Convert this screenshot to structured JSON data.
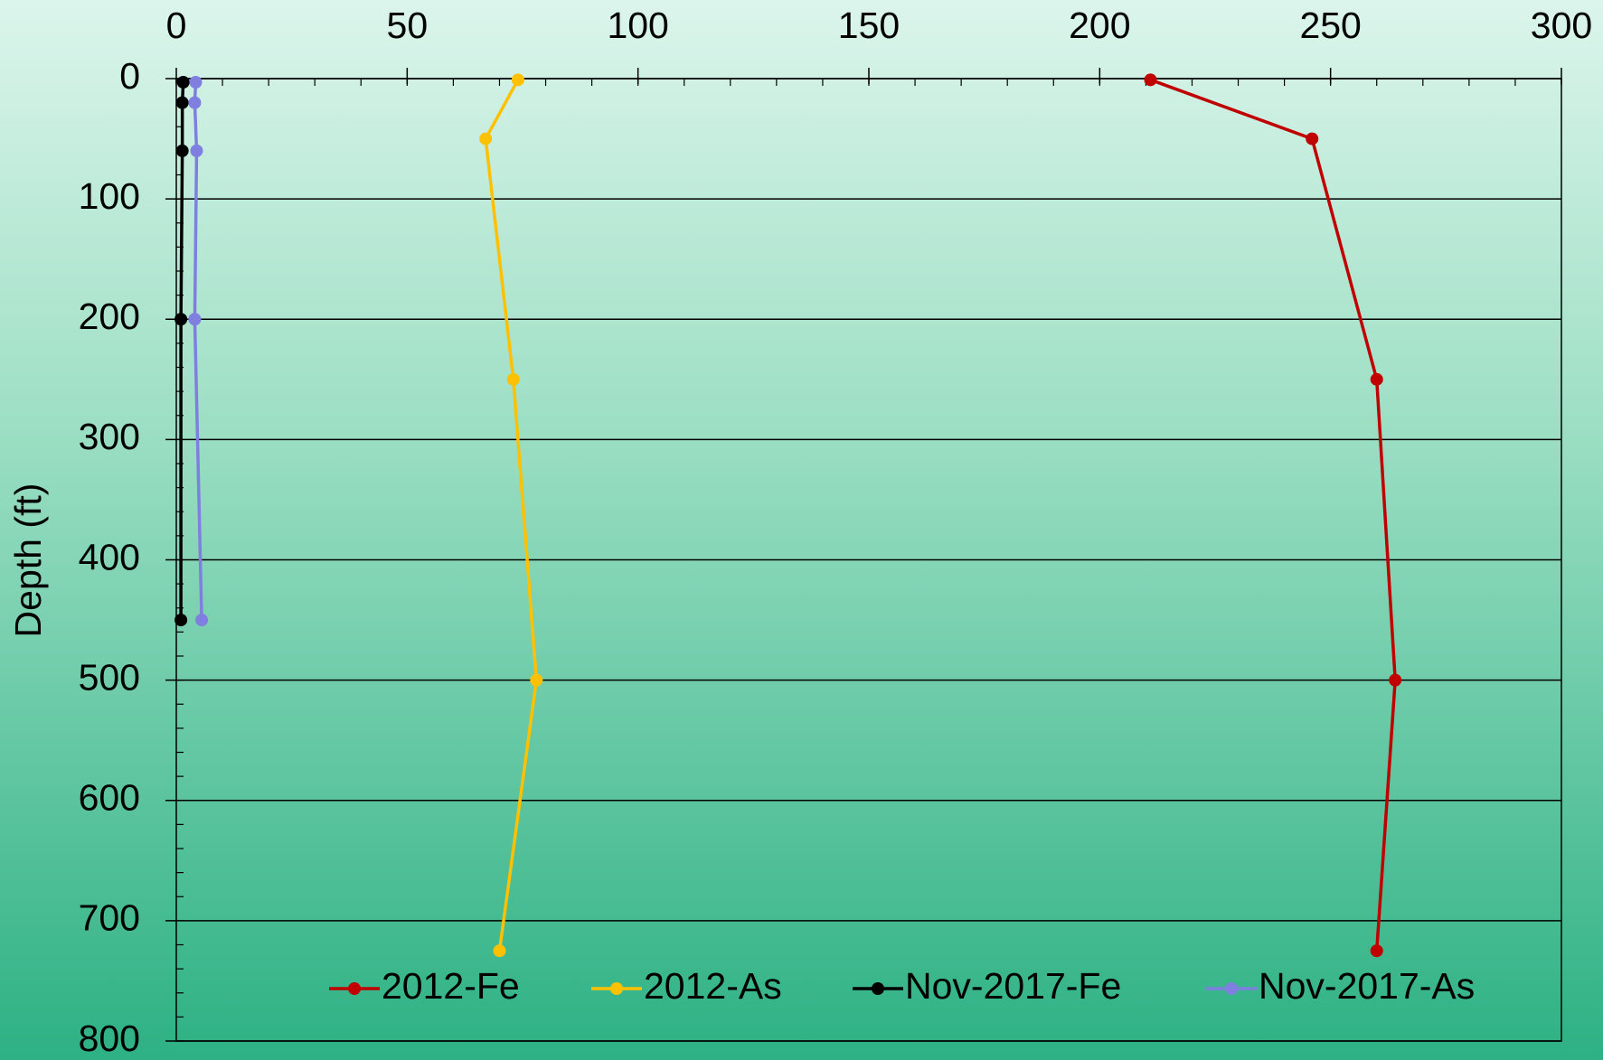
{
  "chart_data": {
    "type": "line",
    "y_label": "Depth (ft)",
    "xlim": [
      0,
      300
    ],
    "xticks": [
      0,
      50,
      100,
      150,
      200,
      250,
      300
    ],
    "xminorticks": [
      0,
      10,
      20,
      30,
      40,
      50,
      60,
      70,
      80,
      90,
      100,
      110,
      120,
      130,
      140,
      150,
      160,
      170,
      180,
      190,
      200,
      210,
      220,
      230,
      240,
      250,
      260,
      270,
      280,
      290,
      300
    ],
    "ylim": [
      0,
      800
    ],
    "yticks": [
      0,
      100,
      200,
      300,
      400,
      500,
      600,
      700,
      800
    ],
    "yminorticks": [
      0,
      20,
      40,
      60,
      80,
      100,
      120,
      140,
      160,
      180,
      200,
      220,
      240,
      260,
      280,
      300,
      320,
      340,
      360,
      380,
      400,
      420,
      440,
      460,
      480,
      500,
      520,
      540,
      560,
      580,
      600,
      620,
      640,
      660,
      680,
      700,
      720,
      740,
      760,
      780,
      800
    ],
    "y_inverted": true,
    "x_axis_position": "top",
    "grid": true,
    "legend": "bottom",
    "series": [
      {
        "name": "2012-Fe",
        "color": "#c00000",
        "x": [
          211,
          246,
          260,
          264,
          260
        ],
        "y": [
          1,
          50,
          250,
          500,
          725
        ]
      },
      {
        "name": "2012-As",
        "color": "#ffc000",
        "x": [
          74,
          67,
          73,
          78,
          70
        ],
        "y": [
          1,
          50,
          250,
          500,
          725
        ]
      },
      {
        "name": "Nov-2017-Fe",
        "color": "#000000",
        "x": [
          1.5,
          1.3,
          1.3,
          1,
          1
        ],
        "y": [
          3,
          20,
          60,
          200,
          450
        ]
      },
      {
        "name": "Nov-2017-As",
        "color": "#7f7fe0",
        "x": [
          4.2,
          4,
          4.4,
          4,
          5.5
        ],
        "y": [
          3,
          20,
          60,
          200,
          450
        ]
      }
    ]
  }
}
